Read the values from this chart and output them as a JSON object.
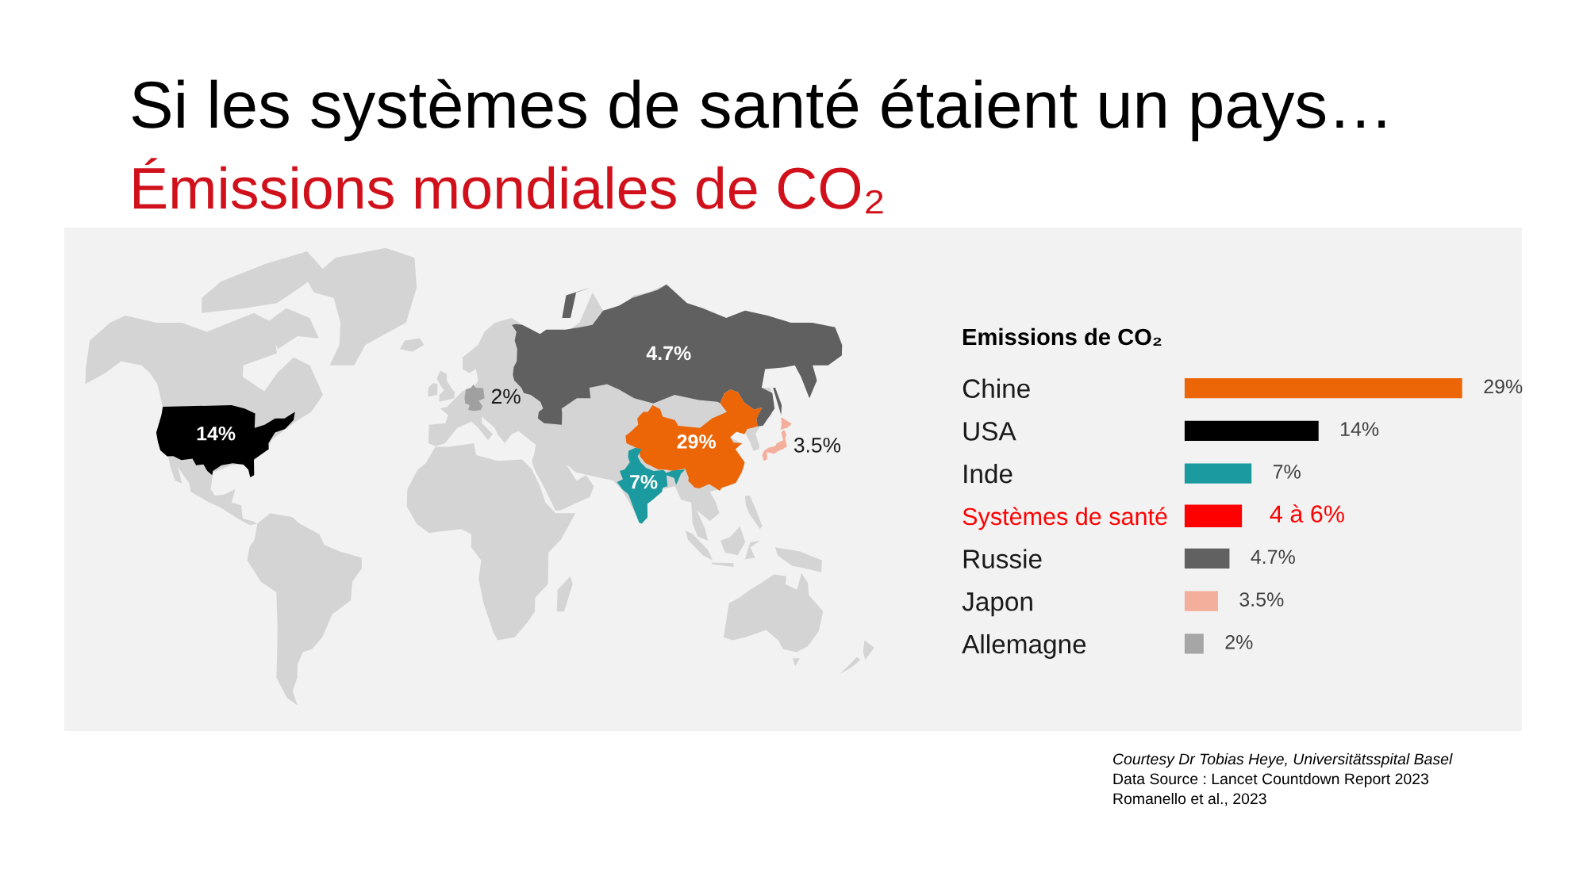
{
  "chart_data": [
    {
      "type": "other",
      "title": "Si les systèmes de santé étaient un pays…",
      "subtitle": "Émissions mondiales de CO₂",
      "colors": [
        "#000000",
        "#a0a0a0",
        "#606060",
        "#ec6608",
        "#1b9aa0",
        "#f4ae9c"
      ],
      "value_labels": [
        "14%",
        "2%",
        "4.7%",
        "29%",
        "7%",
        "3.5%"
      ]
    },
    {
      "type": "bar",
      "orientation": "horizontal",
      "title": "Emissions de CO₂",
      "categories": [
        "Chine",
        "USA",
        "Inde",
        "Systèmes de santé",
        "Russie",
        "Japon",
        "Allemagne"
      ],
      "series": [
        {
          "values": [
            29,
            14,
            7,
            null,
            4.7,
            3.5,
            2
          ],
          "colors": [
            "#ec6608",
            "#000000",
            "#1b9aa0",
            null,
            "#616161",
            "#f4ae9c",
            "#a6a6a6"
          ],
          "value_labels": [
            "29%",
            "14%",
            "7%",
            null,
            "4.7%",
            "3.5%",
            "2%"
          ]
        },
        {
          "color": "#ff0000",
          "values": [
            null,
            null,
            null,
            6,
            null,
            null,
            null
          ],
          "value_labels": [
            null,
            null,
            null,
            "4 à 6%",
            null,
            null,
            null
          ]
        }
      ],
      "tick_labels": "y",
      "annotations": [
        "Courtesy Dr Tobias Heye, Universitätsspital Basel",
        "Data Source : Lancet Countdown Report 2023",
        "Romanello et al., 2023"
      ]
    }
  ]
}
